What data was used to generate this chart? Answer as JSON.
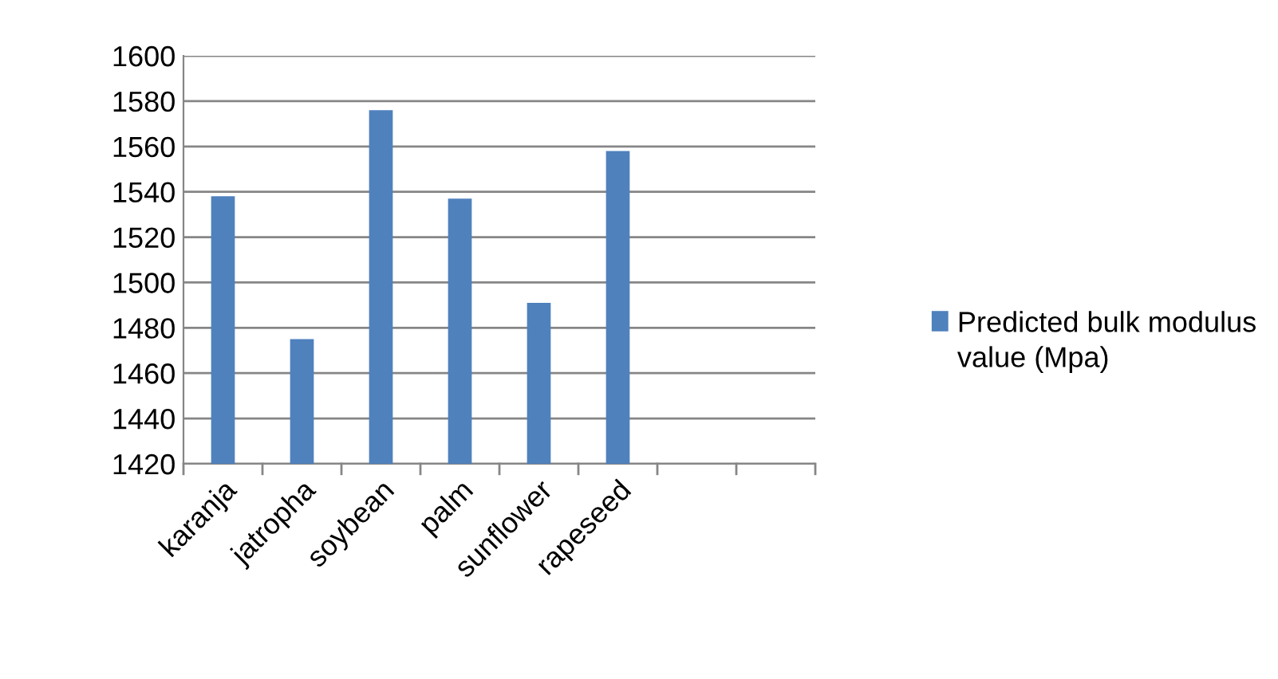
{
  "chart_data": {
    "type": "bar",
    "categories": [
      "karanja",
      "jatropha",
      "soybean",
      "palm",
      "sunflower",
      "rapeseed",
      null,
      null
    ],
    "series": [
      {
        "name": "Predicted bulk modulus value (Mpa)",
        "color": "#4f81bd",
        "values": [
          1538,
          1475,
          1576,
          1537,
          1491,
          1558,
          null,
          null
        ]
      }
    ],
    "ylim": [
      1420,
      1600
    ],
    "yticks": [
      1420,
      1440,
      1460,
      1480,
      1500,
      1520,
      1540,
      1560,
      1580,
      1600
    ],
    "grid": "y",
    "legend": "right"
  }
}
